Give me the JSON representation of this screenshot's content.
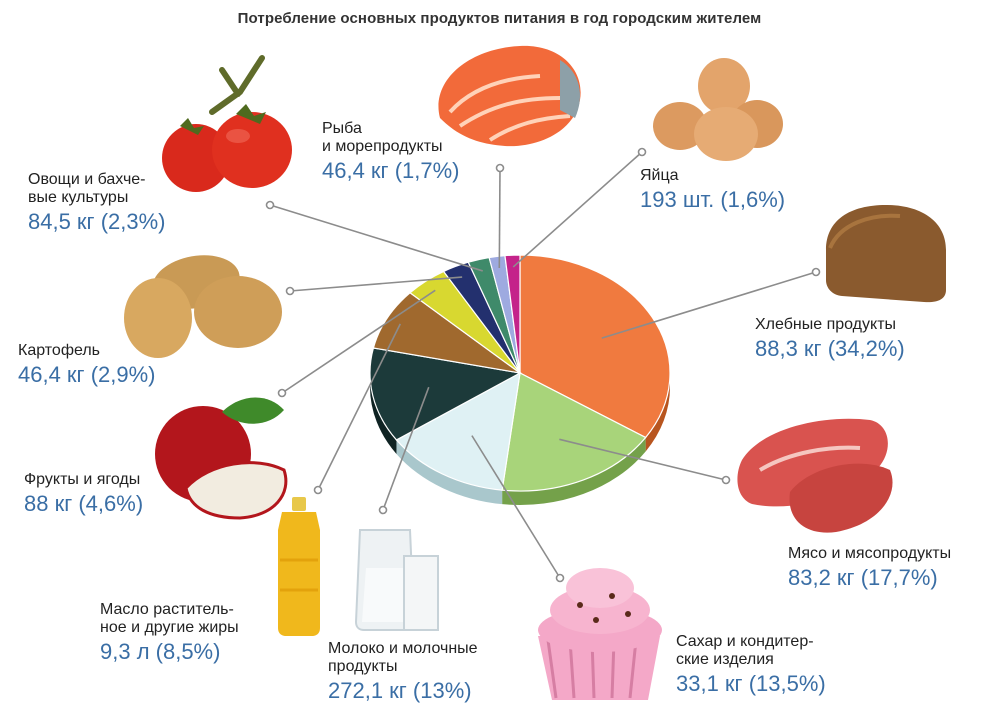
{
  "title": "Потребление основных продуктов питания в год городским жителем",
  "chart_data": {
    "type": "pie",
    "title": "Потребление основных продуктов питания в год городским жителем",
    "slices": [
      {
        "label_lines": [
          "Хлебные продукты"
        ],
        "value_text": "88,3 кг (34,2%)",
        "percent": 34.2,
        "color": "#f07a3f",
        "side": "#b8551f"
      },
      {
        "label_lines": [
          "Мясо и мясопродукты"
        ],
        "value_text": "83,2 кг (17,7%)",
        "percent": 17.7,
        "color": "#a8d47a",
        "side": "#74a14a"
      },
      {
        "label_lines": [
          "Сахар и кондитер-",
          "ские изделия"
        ],
        "value_text": "33,1 кг (13,5%)",
        "percent": 13.5,
        "color": "#dff1f4",
        "side": "#a9c7cc"
      },
      {
        "label_lines": [
          "Молоко и молочные",
          "продукты"
        ],
        "value_text": "272,1 кг (13%)",
        "percent": 13.0,
        "color": "#1c3a3a",
        "side": "#0f2323"
      },
      {
        "label_lines": [
          "Масло раститель-",
          "ное и другие жиры"
        ],
        "value_text": "9,3 л (8,5%)",
        "percent": 8.5,
        "color": "#a0692e",
        "side": "#6e4518"
      },
      {
        "label_lines": [
          "Фрукты и ягоды"
        ],
        "value_text": "88 кг (4,6%)",
        "percent": 4.6,
        "color": "#d8d830",
        "side": "#a3a31c"
      },
      {
        "label_lines": [
          "Картофель"
        ],
        "value_text": "46,4 кг (2,9%)",
        "percent": 2.9,
        "color": "#23306e",
        "side": "#141d47"
      },
      {
        "label_lines": [
          "Овощи и бахче-",
          "вые культуры"
        ],
        "value_text": "84,5 кг (2,3%)",
        "percent": 2.3,
        "color": "#3f8a6a",
        "side": "#2a5e48"
      },
      {
        "label_lines": [
          "Рыба",
          "и морепродукты"
        ],
        "value_text": "46,4 кг (1,7%)",
        "percent": 1.7,
        "color": "#9eaae0",
        "side": "#6e79a8"
      },
      {
        "label_lines": [
          "Яйца"
        ],
        "value_text": "193 шт. (1,6%)",
        "percent": 1.6,
        "color": "#c4238a",
        "side": "#8a1560"
      }
    ]
  }
}
